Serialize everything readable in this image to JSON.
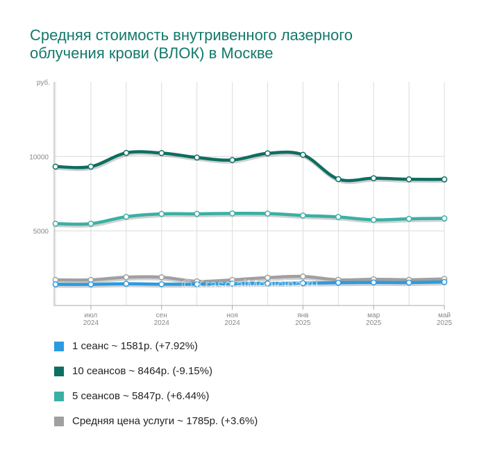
{
  "title": {
    "line1": "Средняя стоимость внутривенного лазерного",
    "line2": "облучения крови (ВЛОК) в Москве"
  },
  "watermark": "© KrasotaiMedicina.ru",
  "legend": [
    {
      "label": "1 сеанс ~ 1581р. (+7.92%)",
      "color": "#2b9be0"
    },
    {
      "label": "10 сеансов ~ 8464р. (-9.15%)",
      "color": "#0e6e62"
    },
    {
      "label": "5 сеансов ~ 5847р. (+6.44%)",
      "color": "#3ab0a4"
    },
    {
      "label": "Средняя цена услуги ~ 1785р. (+3.6%)",
      "color": "#a0a0a0"
    }
  ],
  "chart_data": {
    "type": "line",
    "ylabel": "руб.",
    "ylim": [
      0,
      15000
    ],
    "yticks": [
      5000,
      10000
    ],
    "grid": true,
    "legend_position": "bottom",
    "x": [
      "2024-06",
      "2024-07",
      "2024-08",
      "2024-09",
      "2024-10",
      "2024-11",
      "2024-12",
      "2025-01",
      "2025-02",
      "2025-03",
      "2025-04",
      "2025-05"
    ],
    "xtick_labels": [
      {
        "index": 1,
        "month": "июл",
        "year": "2024"
      },
      {
        "index": 3,
        "month": "сен",
        "year": "2024"
      },
      {
        "index": 5,
        "month": "ноя",
        "year": "2024"
      },
      {
        "index": 7,
        "month": "янв",
        "year": "2025"
      },
      {
        "index": 9,
        "month": "мар",
        "year": "2025"
      },
      {
        "index": 11,
        "month": "май",
        "year": "2025"
      }
    ],
    "series": [
      {
        "name": "Средняя цена услуги",
        "color": "#a0a0a0",
        "values": [
          1720,
          1720,
          1900,
          1900,
          1620,
          1720,
          1870,
          1950,
          1720,
          1760,
          1730,
          1785
        ]
      },
      {
        "name": "5 сеансов",
        "color": "#3ab0a4",
        "values": [
          5490,
          5490,
          5960,
          6150,
          6150,
          6180,
          6170,
          6040,
          5940,
          5750,
          5820,
          5847
        ]
      },
      {
        "name": "10 сеансов",
        "color": "#0e6e62",
        "values": [
          9320,
          9320,
          10240,
          10230,
          9930,
          9760,
          10210,
          10110,
          8480,
          8540,
          8470,
          8464
        ]
      },
      {
        "name": "1 сеанс",
        "color": "#2b9be0",
        "values": [
          1420,
          1420,
          1460,
          1430,
          1430,
          1470,
          1480,
          1500,
          1530,
          1550,
          1540,
          1581
        ]
      }
    ]
  }
}
